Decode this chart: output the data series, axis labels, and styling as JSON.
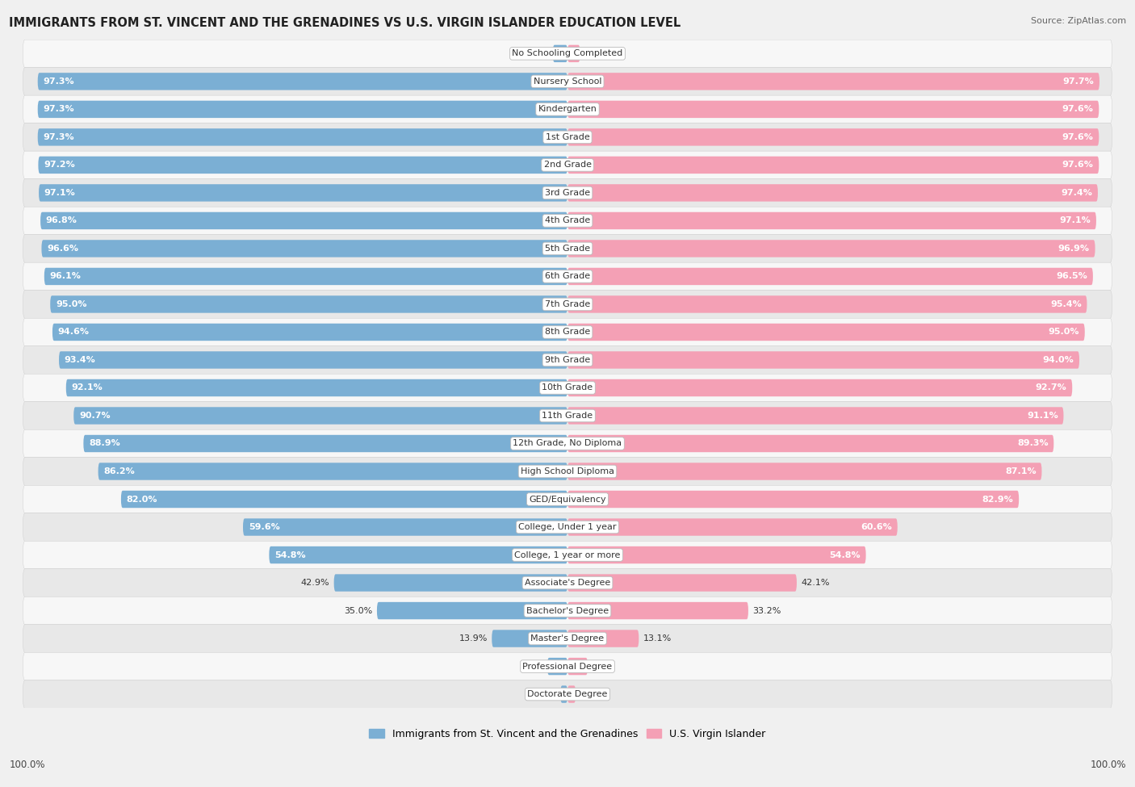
{
  "title": "IMMIGRANTS FROM ST. VINCENT AND THE GRENADINES VS U.S. VIRGIN ISLANDER EDUCATION LEVEL",
  "source": "Source: ZipAtlas.com",
  "categories": [
    "No Schooling Completed",
    "Nursery School",
    "Kindergarten",
    "1st Grade",
    "2nd Grade",
    "3rd Grade",
    "4th Grade",
    "5th Grade",
    "6th Grade",
    "7th Grade",
    "8th Grade",
    "9th Grade",
    "10th Grade",
    "11th Grade",
    "12th Grade, No Diploma",
    "High School Diploma",
    "GED/Equivalency",
    "College, Under 1 year",
    "College, 1 year or more",
    "Associate's Degree",
    "Bachelor's Degree",
    "Master's Degree",
    "Professional Degree",
    "Doctorate Degree"
  ],
  "left_values": [
    2.7,
    97.3,
    97.3,
    97.3,
    97.2,
    97.1,
    96.8,
    96.6,
    96.1,
    95.0,
    94.6,
    93.4,
    92.1,
    90.7,
    88.9,
    86.2,
    82.0,
    59.6,
    54.8,
    42.9,
    35.0,
    13.9,
    3.7,
    1.3
  ],
  "right_values": [
    2.3,
    97.7,
    97.6,
    97.6,
    97.6,
    97.4,
    97.1,
    96.9,
    96.5,
    95.4,
    95.0,
    94.0,
    92.7,
    91.1,
    89.3,
    87.1,
    82.9,
    60.6,
    54.8,
    42.1,
    33.2,
    13.1,
    3.7,
    1.5
  ],
  "left_color": "#7bafd4",
  "right_color": "#f4a0b5",
  "bar_height": 0.62,
  "row_bg_light": "#f7f7f7",
  "row_bg_dark": "#e8e8e8",
  "fig_bg": "#f0f0f0",
  "legend_left": "Immigrants from St. Vincent and the Grenadines",
  "legend_right": "U.S. Virgin Islander",
  "axis_label_left": "100.0%",
  "axis_label_right": "100.0%",
  "center_label_bg": "#ffffff",
  "center_label_border": "#cccccc"
}
